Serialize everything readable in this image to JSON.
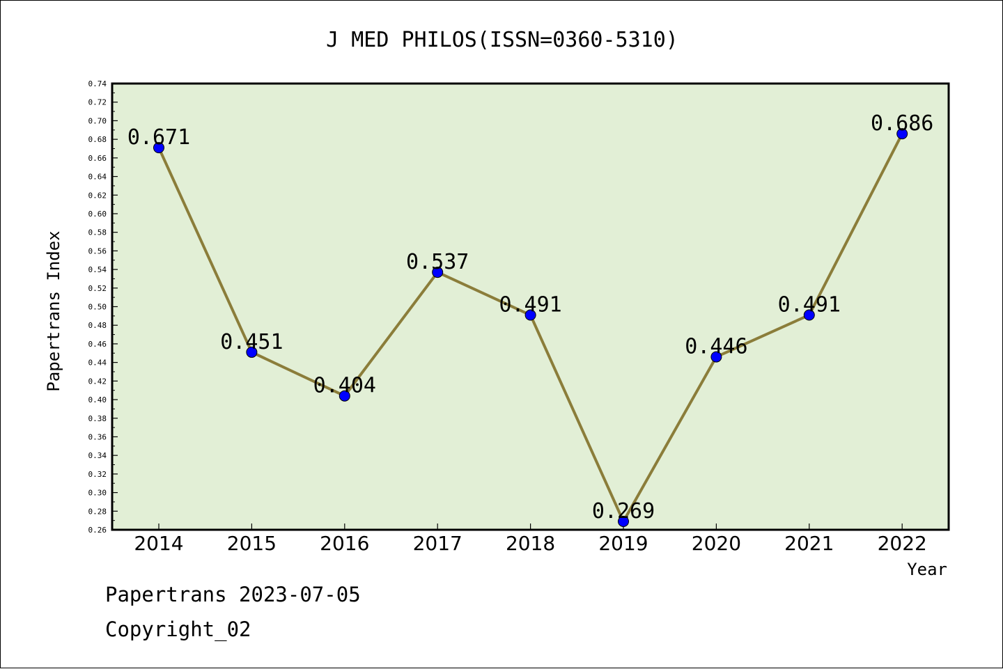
{
  "chart_data": {
    "type": "line",
    "title": "J MED PHILOS(ISSN=0360-5310)",
    "xlabel": "Year",
    "ylabel": "Papertrans Index",
    "categories": [
      "2014",
      "2015",
      "2016",
      "2017",
      "2018",
      "2019",
      "2020",
      "2021",
      "2022"
    ],
    "values": [
      0.671,
      0.451,
      0.404,
      0.537,
      0.491,
      0.269,
      0.446,
      0.491,
      0.686
    ],
    "data_labels": [
      "0.671",
      "0.451",
      "0.404",
      "0.537",
      "0.491",
      "0.269",
      "0.446",
      "0.491",
      "0.686"
    ],
    "ylim": [
      0.26,
      0.74
    ],
    "y_ticks": [
      "0.26",
      "0.28",
      "0.30",
      "0.32",
      "0.34",
      "0.36",
      "0.38",
      "0.40",
      "0.42",
      "0.44",
      "0.46",
      "0.48",
      "0.50",
      "0.52",
      "0.54",
      "0.56",
      "0.58",
      "0.60",
      "0.62",
      "0.64",
      "0.66",
      "0.68",
      "0.70",
      "0.72",
      "0.74"
    ],
    "grid": false,
    "colors": {
      "plot_background": "#e2efd6",
      "line": "#8b7d3a",
      "marker": "#0000ff"
    }
  },
  "footer": {
    "line1": "Papertrans 2023-07-05",
    "line2": "Copyright_02"
  }
}
